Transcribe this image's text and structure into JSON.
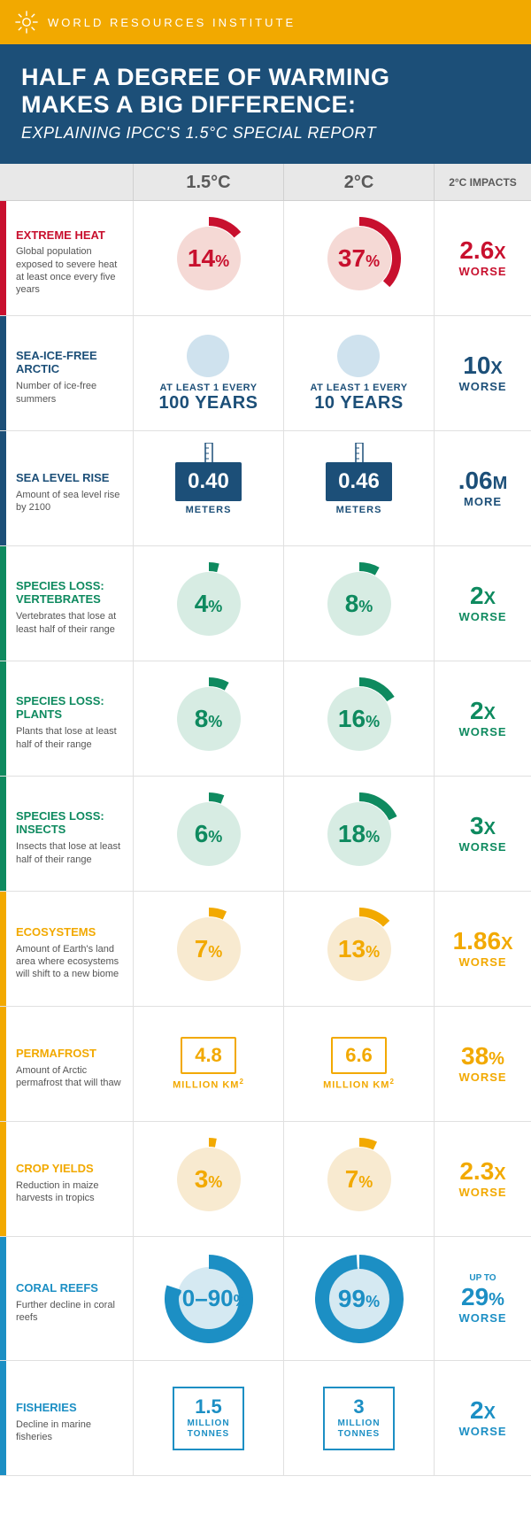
{
  "header": {
    "org": "WORLD RESOURCES INSTITUTE"
  },
  "title": {
    "line1": "HALF A DEGREE OF WARMING",
    "line2": "MAKES A BIG DIFFERENCE:",
    "sub": "EXPLAINING IPCC'S 1.5°C SPECIAL REPORT"
  },
  "cols": {
    "c15": "1.5°C",
    "c20": "2°C",
    "impacts": "2°C IMPACTS"
  },
  "colors": {
    "red": "#c8102e",
    "blue": "#1c4f78",
    "green": "#0e8a5f",
    "orange": "#f2a900",
    "cyan": "#1c8fc4",
    "globe": "#f5d9d5",
    "globeBlue": "#cfe2ee",
    "globeGreen": "#d7ece3",
    "globeOrange": "#f8ead0",
    "globeCyan": "#d5e9f2"
  },
  "rows": [
    {
      "id": "heat",
      "tab": "#c8102e",
      "titleColor": "#c8102e",
      "title": "EXTREME HEAT",
      "desc": "Global population exposed to severe heat at least once every five years",
      "kind": "gauge",
      "arcColor": "#c8102e",
      "bgColor": "#f5d9d5",
      "v15": {
        "val": "14",
        "pct": 14
      },
      "v20": {
        "val": "37",
        "pct": 37
      },
      "impact": {
        "big": "2.6",
        "x": "X",
        "small": "WORSE"
      }
    },
    {
      "id": "arctic",
      "tab": "#1c4f78",
      "titleColor": "#1c4f78",
      "title": "SEA-ICE-FREE ARCTIC",
      "desc": "Number of ice-free summers",
      "kind": "arctic",
      "bgColor": "#cfe2ee",
      "v15": {
        "top": "AT LEAST 1 EVERY",
        "bot": "100 YEARS"
      },
      "v20": {
        "top": "AT LEAST 1 EVERY",
        "bot": "10 YEARS"
      },
      "impact": {
        "big": "10",
        "x": "X",
        "small": "WORSE",
        "color": "#1c4f78"
      }
    },
    {
      "id": "sealevel",
      "tab": "#1c4f78",
      "titleColor": "#1c4f78",
      "title": "SEA LEVEL RISE",
      "desc": "Amount of sea level rise by 2100",
      "kind": "sea",
      "v15": {
        "val": "0.40",
        "unit": "METERS"
      },
      "v20": {
        "val": "0.46",
        "unit": "METERS"
      },
      "impact": {
        "big": ".06",
        "x": "M",
        "small": "MORE",
        "color": "#1c4f78"
      }
    },
    {
      "id": "vert",
      "tab": "#0e8a5f",
      "titleColor": "#0e8a5f",
      "title": "SPECIES LOSS: VERTEBRATES",
      "desc": "Vertebrates that lose at least half of their range",
      "kind": "gauge",
      "arcColor": "#0e8a5f",
      "bgColor": "#d7ece3",
      "v15": {
        "val": "4",
        "pct": 4
      },
      "v20": {
        "val": "8",
        "pct": 8
      },
      "impact": {
        "big": "2",
        "x": "X",
        "small": "WORSE",
        "color": "#0e8a5f"
      }
    },
    {
      "id": "plants",
      "tab": "#0e8a5f",
      "titleColor": "#0e8a5f",
      "title": "SPECIES LOSS: PLANTS",
      "desc": "Plants that lose at least half of their range",
      "kind": "gauge",
      "arcColor": "#0e8a5f",
      "bgColor": "#d7ece3",
      "v15": {
        "val": "8",
        "pct": 8
      },
      "v20": {
        "val": "16",
        "pct": 16
      },
      "impact": {
        "big": "2",
        "x": "X",
        "small": "WORSE",
        "color": "#0e8a5f"
      }
    },
    {
      "id": "insects",
      "tab": "#0e8a5f",
      "titleColor": "#0e8a5f",
      "title": "SPECIES LOSS: INSECTS",
      "desc": "Insects that lose at least half of their range",
      "kind": "gauge",
      "arcColor": "#0e8a5f",
      "bgColor": "#d7ece3",
      "v15": {
        "val": "6",
        "pct": 6
      },
      "v20": {
        "val": "18",
        "pct": 18
      },
      "impact": {
        "big": "3",
        "x": "X",
        "small": "WORSE",
        "color": "#0e8a5f"
      }
    },
    {
      "id": "eco",
      "tab": "#f2a900",
      "titleColor": "#f2a900",
      "title": "ECOSYSTEMS",
      "desc": "Amount of Earth's land area where ecosystems will shift to a new biome",
      "kind": "gauge",
      "arcColor": "#f2a900",
      "bgColor": "#f8ead0",
      "v15": {
        "val": "7",
        "pct": 7
      },
      "v20": {
        "val": "13",
        "pct": 13
      },
      "impact": {
        "big": "1.86",
        "x": "X",
        "small": "WORSE",
        "color": "#f2a900"
      }
    },
    {
      "id": "perma",
      "tab": "#f2a900",
      "titleColor": "#f2a900",
      "title": "PERMAFROST",
      "desc": "Amount of Arctic permafrost that will thaw",
      "kind": "box",
      "boxColor": "#f2a900",
      "v15": {
        "val": "4.8",
        "unit": "MILLION KM",
        "sup": "2"
      },
      "v20": {
        "val": "6.6",
        "unit": "MILLION KM",
        "sup": "2"
      },
      "impact": {
        "big": "38",
        "x": "%",
        "small": "WORSE",
        "color": "#f2a900"
      }
    },
    {
      "id": "crop",
      "tab": "#f2a900",
      "titleColor": "#f2a900",
      "title": "CROP YIELDS",
      "desc": "Reduction in maize harvests in tropics",
      "kind": "gauge",
      "arcColor": "#f2a900",
      "bgColor": "#f8ead0",
      "v15": {
        "val": "3",
        "pct": 3
      },
      "v20": {
        "val": "7",
        "pct": 7
      },
      "impact": {
        "big": "2.3",
        "x": "X",
        "small": "WORSE",
        "color": "#f2a900"
      }
    },
    {
      "id": "coral",
      "tab": "#1c8fc4",
      "titleColor": "#1c8fc4",
      "title": "CORAL REEFS",
      "desc": "Further decline in coral reefs",
      "kind": "gauge",
      "arcColor": "#1c8fc4",
      "bgColor": "#d5e9f2",
      "v15": {
        "val": "70–90",
        "pct": 80
      },
      "v20": {
        "val": "99",
        "pct": 99
      },
      "impact": {
        "pre": "UP TO",
        "big": "29",
        "x": "%",
        "small": "WORSE",
        "color": "#1c8fc4"
      }
    },
    {
      "id": "fish",
      "tab": "#1c8fc4",
      "titleColor": "#1c8fc4",
      "title": "FISHERIES",
      "desc": "Decline in marine fisheries",
      "kind": "fish",
      "v15": {
        "val": "1.5",
        "unit1": "MILLION",
        "unit2": "TONNES"
      },
      "v20": {
        "val": "3",
        "unit1": "MILLION",
        "unit2": "TONNES"
      },
      "impact": {
        "big": "2",
        "x": "X",
        "small": "WORSE",
        "color": "#1c8fc4"
      }
    }
  ]
}
